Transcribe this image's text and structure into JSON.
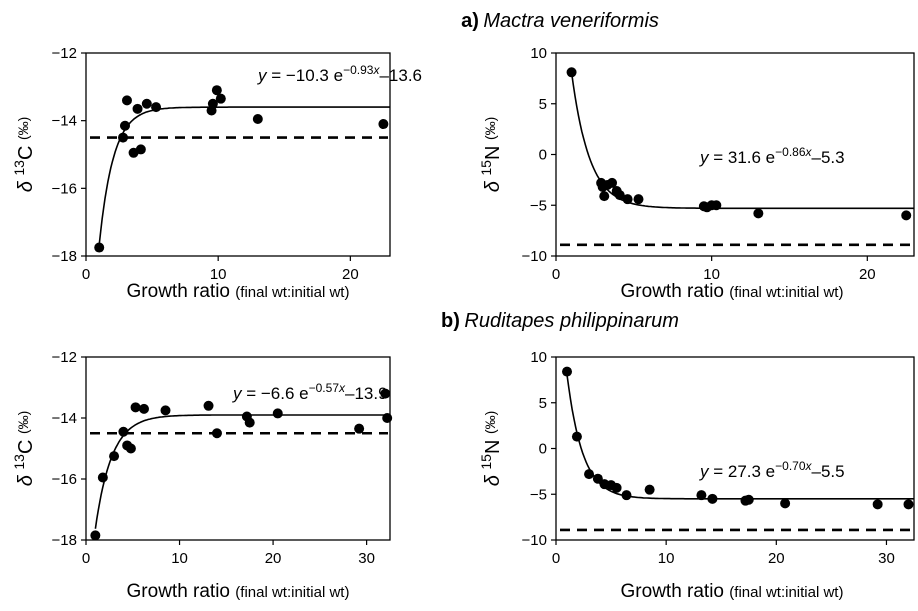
{
  "panel_titles": [
    {
      "letter": "a",
      "paren": ")",
      "species": "Mactra veneriformis"
    },
    {
      "letter": "b",
      "paren": ")",
      "species": "Ruditapes philippinarum"
    }
  ],
  "chart_data": [
    {
      "id": "a-carbon",
      "type": "scatter",
      "xlabel": "Growth ratio",
      "xlabel_suffix": "(final wt:initial wt)",
      "ylabel_symbol": "δ",
      "ylabel_mass": "13",
      "ylabel_element": "C",
      "ylabel_unit": "(‰)",
      "xlim": [
        0,
        23
      ],
      "ylim": [
        -18,
        -12
      ],
      "xticks": [
        0,
        10,
        20
      ],
      "yticks": [
        -18,
        -16,
        -14,
        -12
      ],
      "equation": {
        "y": "y",
        "eq": " = ",
        "a": "−10.3 e",
        "exp": "−0.93",
        "x": "x",
        "c": "–13.6"
      },
      "fit": {
        "a": -10.3,
        "b": -0.93,
        "c": -13.6
      },
      "reference_line": -14.5,
      "points": [
        [
          1,
          -17.75
        ],
        [
          2.8,
          -14.5
        ],
        [
          2.95,
          -14.15
        ],
        [
          3.1,
          -13.4
        ],
        [
          3.6,
          -14.95
        ],
        [
          3.9,
          -13.65
        ],
        [
          4.15,
          -14.85
        ],
        [
          4.6,
          -13.5
        ],
        [
          5.3,
          -13.6
        ],
        [
          9.5,
          -13.7
        ],
        [
          9.6,
          -13.5
        ],
        [
          9.9,
          -13.1
        ],
        [
          10.2,
          -13.35
        ],
        [
          13.0,
          -13.95
        ],
        [
          22.5,
          -14.1
        ]
      ]
    },
    {
      "id": "a-nitrogen",
      "type": "scatter",
      "xlabel": "Growth ratio",
      "xlabel_suffix": "(final wt:initial wt)",
      "ylabel_symbol": "δ",
      "ylabel_mass": "15",
      "ylabel_element": "N",
      "ylabel_unit": "(‰)",
      "xlim": [
        0,
        23
      ],
      "ylim": [
        -10,
        10
      ],
      "xticks": [
        0,
        10,
        20
      ],
      "yticks": [
        -10,
        -5,
        0,
        5,
        10
      ],
      "equation": {
        "y": "y",
        "eq": " = ",
        "a": "31.6 e",
        "exp": "−0.86",
        "x": "x",
        "c": "–5.3"
      },
      "fit": {
        "a": 31.6,
        "b": -0.86,
        "c": -5.3
      },
      "reference_line": -8.9,
      "points": [
        [
          1,
          8.1
        ],
        [
          2.9,
          -2.8
        ],
        [
          3.0,
          -3.2
        ],
        [
          3.1,
          -4.1
        ],
        [
          3.3,
          -3.0
        ],
        [
          3.6,
          -2.8
        ],
        [
          3.9,
          -3.6
        ],
        [
          4.1,
          -4.0
        ],
        [
          4.6,
          -4.4
        ],
        [
          5.3,
          -4.4
        ],
        [
          9.5,
          -5.1
        ],
        [
          9.7,
          -5.2
        ],
        [
          10.0,
          -5.0
        ],
        [
          10.3,
          -5.0
        ],
        [
          13.0,
          -5.8
        ],
        [
          22.5,
          -6.0
        ]
      ]
    },
    {
      "id": "b-carbon",
      "type": "scatter",
      "xlabel": "Growth ratio",
      "xlabel_suffix": "(final wt:initial wt)",
      "ylabel_symbol": "δ",
      "ylabel_mass": "13",
      "ylabel_element": "C",
      "ylabel_unit": "(‰)",
      "xlim": [
        0,
        32.5
      ],
      "ylim": [
        -18,
        -12
      ],
      "xticks": [
        0,
        10,
        20,
        30
      ],
      "yticks": [
        -18,
        -16,
        -14,
        -12
      ],
      "equation": {
        "y": "y",
        "eq": " = ",
        "a": "−6.6 e",
        "exp": "−0.57",
        "x": "x",
        "c": "–13.9"
      },
      "fit": {
        "a": -6.6,
        "b": -0.57,
        "c": -13.9
      },
      "reference_line": -14.5,
      "points": [
        [
          1,
          -17.85
        ],
        [
          1.8,
          -15.95
        ],
        [
          3.0,
          -15.25
        ],
        [
          4.0,
          -14.45
        ],
        [
          4.4,
          -14.9
        ],
        [
          4.8,
          -15.0
        ],
        [
          5.3,
          -13.65
        ],
        [
          6.2,
          -13.7
        ],
        [
          8.5,
          -13.75
        ],
        [
          13.1,
          -13.6
        ],
        [
          14.0,
          -14.5
        ],
        [
          17.2,
          -13.95
        ],
        [
          17.5,
          -14.15
        ],
        [
          20.5,
          -13.85
        ],
        [
          29.2,
          -14.35
        ],
        [
          32.0,
          -13.2
        ],
        [
          32.2,
          -14.0
        ]
      ]
    },
    {
      "id": "b-nitrogen",
      "type": "scatter",
      "xlabel": "Growth ratio",
      "xlabel_suffix": "(final wt:initial wt)",
      "ylabel_symbol": "δ",
      "ylabel_mass": "15",
      "ylabel_element": "N",
      "ylabel_unit": "(‰)",
      "xlim": [
        0,
        32.5
      ],
      "ylim": [
        -10,
        10
      ],
      "xticks": [
        0,
        10,
        20,
        30
      ],
      "yticks": [
        -10,
        -5,
        0,
        5,
        10
      ],
      "equation": {
        "y": "y",
        "eq": " = ",
        "a": "27.3 e",
        "exp": "−0.70",
        "x": "x",
        "c": "–5.5"
      },
      "fit": {
        "a": 27.3,
        "b": -0.7,
        "c": -5.5
      },
      "reference_line": -8.9,
      "points": [
        [
          1,
          8.4
        ],
        [
          1.9,
          1.3
        ],
        [
          3.0,
          -2.8
        ],
        [
          3.8,
          -3.3
        ],
        [
          4.4,
          -3.9
        ],
        [
          5.0,
          -4.0
        ],
        [
          5.5,
          -4.3
        ],
        [
          6.4,
          -5.1
        ],
        [
          8.5,
          -4.5
        ],
        [
          13.2,
          -5.1
        ],
        [
          14.2,
          -5.5
        ],
        [
          17.2,
          -5.7
        ],
        [
          17.5,
          -5.6
        ],
        [
          20.8,
          -6.0
        ],
        [
          29.2,
          -6.1
        ],
        [
          32.0,
          -6.1
        ]
      ]
    }
  ],
  "colors": {
    "ink": "#000000",
    "background": "#ffffff"
  }
}
